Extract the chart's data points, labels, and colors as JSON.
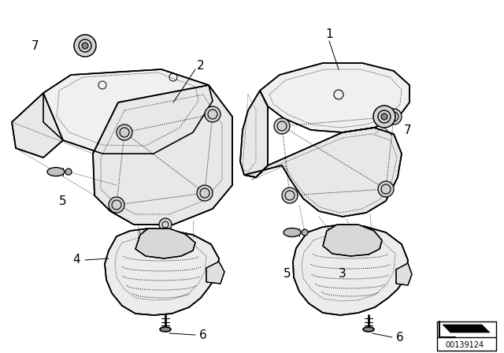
{
  "bg_color": "#ffffff",
  "line_color": "#000000",
  "part_number_text": "00139124",
  "figsize": [
    6.4,
    4.48
  ],
  "dpi": 100
}
